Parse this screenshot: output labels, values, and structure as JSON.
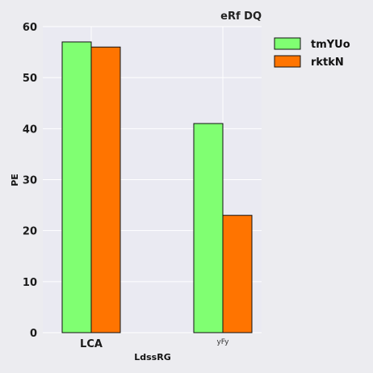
{
  "chart_data": {
    "type": "bar",
    "title": "eRf DQ",
    "xlabel": "LdssRG",
    "ylabel": "PE",
    "categories": [
      "LCA",
      "yFy"
    ],
    "series": [
      {
        "name": "tmYUo",
        "values": [
          57,
          41
        ],
        "color": "#80ff72"
      },
      {
        "name": "rktkN",
        "values": [
          56,
          23
        ],
        "color": "#ff7400"
      }
    ],
    "ylim": [
      0,
      60
    ],
    "yticks": [
      0,
      10,
      20,
      30,
      40,
      50,
      60
    ],
    "grid": true,
    "legend_position": "outside-top-right"
  }
}
